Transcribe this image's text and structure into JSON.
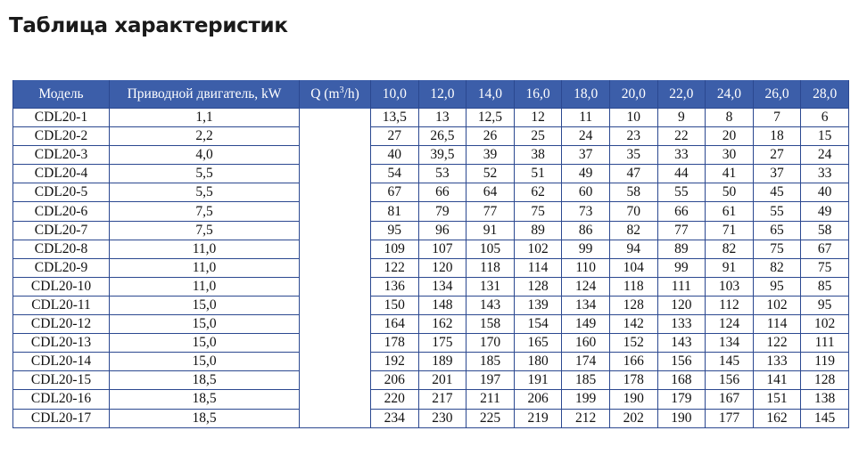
{
  "title": "Таблица характеристик",
  "table": {
    "headers": {
      "model": "Модель",
      "motor": "Приводной двигатель, kW",
      "q_prefix": "Q (m",
      "q_sup": "3",
      "q_suffix": "/h)",
      "flows": [
        "10,0",
        "12,0",
        "14,0",
        "16,0",
        "18,0",
        "20,0",
        "22,0",
        "24,0",
        "26,0",
        "28,0"
      ]
    },
    "rows": [
      {
        "model": "CDL20-1",
        "motor": "1,1",
        "values": [
          "13,5",
          "13",
          "12,5",
          "12",
          "11",
          "10",
          "9",
          "8",
          "7",
          "6"
        ]
      },
      {
        "model": "CDL20-2",
        "motor": "2,2",
        "values": [
          "27",
          "26,5",
          "26",
          "25",
          "24",
          "23",
          "22",
          "20",
          "18",
          "15"
        ]
      },
      {
        "model": "CDL20-3",
        "motor": "4,0",
        "values": [
          "40",
          "39,5",
          "39",
          "38",
          "37",
          "35",
          "33",
          "30",
          "27",
          "24"
        ]
      },
      {
        "model": "CDL20-4",
        "motor": "5,5",
        "values": [
          "54",
          "53",
          "52",
          "51",
          "49",
          "47",
          "44",
          "41",
          "37",
          "33"
        ]
      },
      {
        "model": "CDL20-5",
        "motor": "5,5",
        "values": [
          "67",
          "66",
          "64",
          "62",
          "60",
          "58",
          "55",
          "50",
          "45",
          "40"
        ]
      },
      {
        "model": "CDL20-6",
        "motor": "7,5",
        "values": [
          "81",
          "79",
          "77",
          "75",
          "73",
          "70",
          "66",
          "61",
          "55",
          "49"
        ]
      },
      {
        "model": "CDL20-7",
        "motor": "7,5",
        "values": [
          "95",
          "96",
          "91",
          "89",
          "86",
          "82",
          "77",
          "71",
          "65",
          "58"
        ]
      },
      {
        "model": "CDL20-8",
        "motor": "11,0",
        "values": [
          "109",
          "107",
          "105",
          "102",
          "99",
          "94",
          "89",
          "82",
          "75",
          "67"
        ]
      },
      {
        "model": "CDL20-9",
        "motor": "11,0",
        "values": [
          "122",
          "120",
          "118",
          "114",
          "110",
          "104",
          "99",
          "91",
          "82",
          "75"
        ]
      },
      {
        "model": "CDL20-10",
        "motor": "11,0",
        "values": [
          "136",
          "134",
          "131",
          "128",
          "124",
          "118",
          "111",
          "103",
          "95",
          "85"
        ]
      },
      {
        "model": "CDL20-11",
        "motor": "15,0",
        "values": [
          "150",
          "148",
          "143",
          "139",
          "134",
          "128",
          "120",
          "112",
          "102",
          "95"
        ]
      },
      {
        "model": "CDL20-12",
        "motor": "15,0",
        "values": [
          "164",
          "162",
          "158",
          "154",
          "149",
          "142",
          "133",
          "124",
          "114",
          "102"
        ]
      },
      {
        "model": "CDL20-13",
        "motor": "15,0",
        "values": [
          "178",
          "175",
          "170",
          "165",
          "160",
          "152",
          "143",
          "134",
          "122",
          "111"
        ]
      },
      {
        "model": "CDL20-14",
        "motor": "15,0",
        "values": [
          "192",
          "189",
          "185",
          "180",
          "174",
          "166",
          "156",
          "145",
          "133",
          "119"
        ]
      },
      {
        "model": "CDL20-15",
        "motor": "18,5",
        "values": [
          "206",
          "201",
          "197",
          "191",
          "185",
          "178",
          "168",
          "156",
          "141",
          "128"
        ]
      },
      {
        "model": "CDL20-16",
        "motor": "18,5",
        "values": [
          "220",
          "217",
          "211",
          "206",
          "199",
          "190",
          "179",
          "167",
          "151",
          "138"
        ]
      },
      {
        "model": "CDL20-17",
        "motor": "18,5",
        "values": [
          "234",
          "230",
          "225",
          "219",
          "212",
          "202",
          "190",
          "177",
          "162",
          "145"
        ]
      }
    ]
  },
  "colors": {
    "header_bg": "#3c5ea9",
    "border": "#2b4890"
  }
}
